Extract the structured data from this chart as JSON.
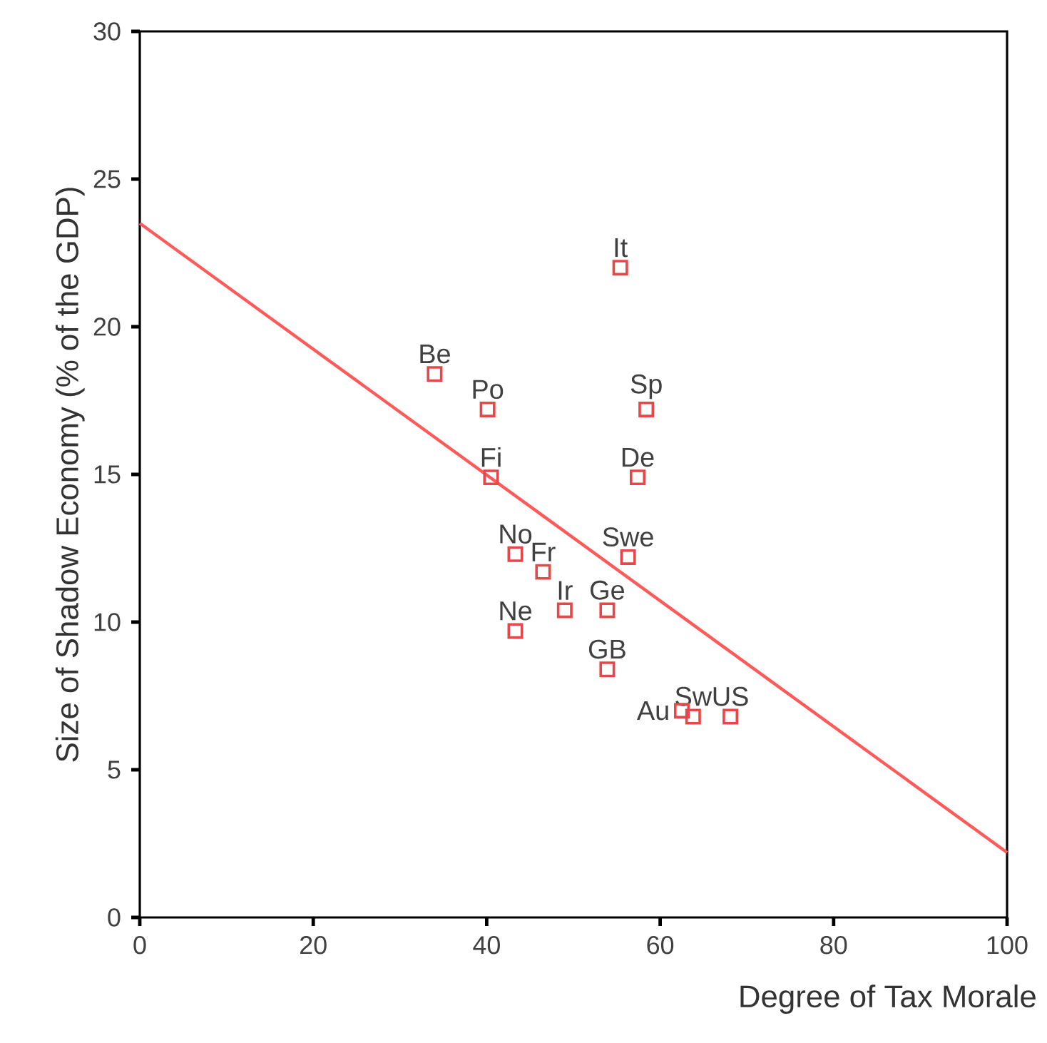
{
  "chart_data": {
    "type": "scatter",
    "xlabel": "Degree of Tax Morale",
    "ylabel": "Size of Shadow Economy (% of the GDP)",
    "xlim": [
      0,
      100
    ],
    "ylim": [
      0,
      30
    ],
    "xticks": [
      0,
      20,
      40,
      60,
      80,
      100
    ],
    "yticks": [
      0,
      5,
      10,
      15,
      20,
      25,
      30
    ],
    "marker": "square",
    "series": [
      {
        "color": "#e8474a",
        "x": [
          34.0,
          40.1,
          40.5,
          43.3,
          46.5,
          43.3,
          49.0,
          55.4,
          58.4,
          57.4,
          56.3,
          53.9,
          53.9,
          62.5,
          63.8,
          68.1
        ],
        "values": [
          18.4,
          17.2,
          14.9,
          12.3,
          11.7,
          9.7,
          10.4,
          22.0,
          17.2,
          14.9,
          12.2,
          10.4,
          8.4,
          7.0,
          6.8,
          6.8
        ]
      },
      {
        "type": "line",
        "marker": "none",
        "color": "#ff5a5a",
        "x": [
          0,
          100
        ],
        "values": [
          23.5,
          2.2
        ]
      }
    ],
    "annotations": [
      {
        "text": "Be",
        "x": 34.0,
        "y": 18.4
      },
      {
        "text": "Po",
        "x": 40.1,
        "y": 17.2
      },
      {
        "text": "Fi",
        "x": 40.5,
        "y": 14.9
      },
      {
        "text": "No",
        "x": 43.3,
        "y": 12.3
      },
      {
        "text": "Fr",
        "x": 46.5,
        "y": 11.7
      },
      {
        "text": "Ne",
        "x": 43.3,
        "y": 9.7
      },
      {
        "text": "Ir",
        "x": 49.0,
        "y": 10.4
      },
      {
        "text": "It",
        "x": 55.4,
        "y": 22.0
      },
      {
        "text": "Sp",
        "x": 58.4,
        "y": 17.2
      },
      {
        "text": "De",
        "x": 57.4,
        "y": 14.9
      },
      {
        "text": "Swe",
        "x": 56.3,
        "y": 12.2
      },
      {
        "text": "Ge",
        "x": 53.9,
        "y": 10.4
      },
      {
        "text": "GB",
        "x": 53.9,
        "y": 8.4
      },
      {
        "text": "Au",
        "x": 62.5,
        "y": 7.0
      },
      {
        "text": "Sw",
        "x": 63.8,
        "y": 6.8
      },
      {
        "text": "US",
        "x": 68.1,
        "y": 6.8
      }
    ]
  }
}
